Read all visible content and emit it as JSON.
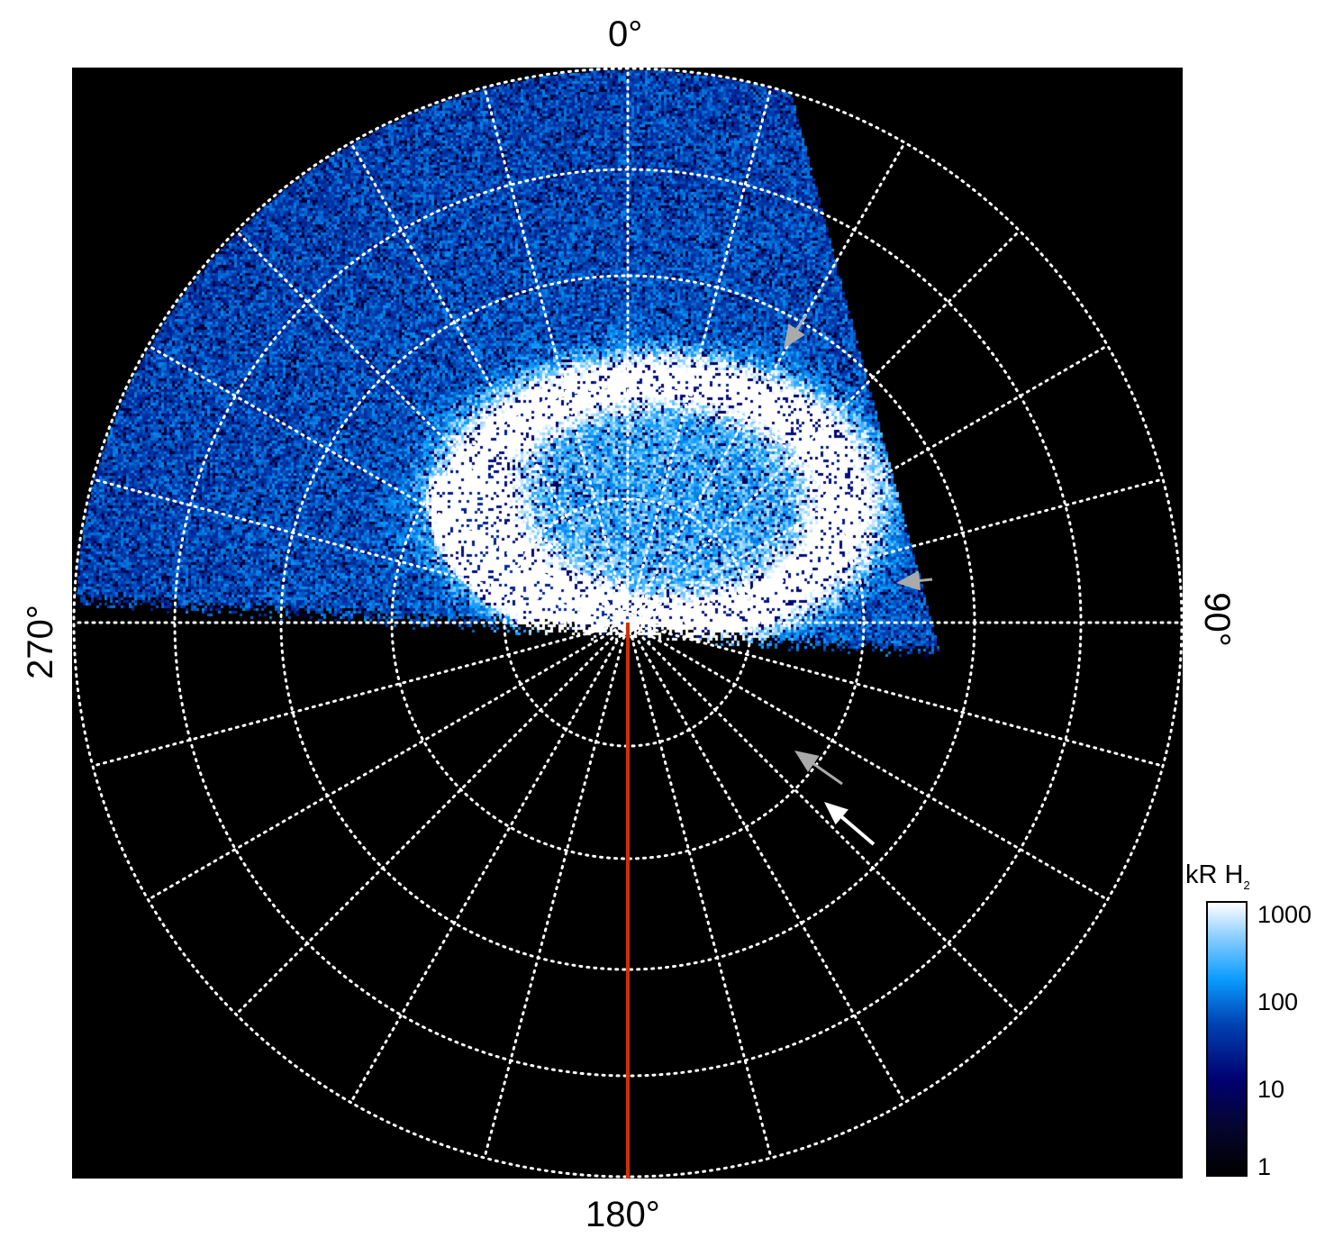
{
  "chart_data": {
    "type": "heatmap",
    "projection": "polar",
    "angle_labels": {
      "top": "0°",
      "right": "90°",
      "bottom": "180°",
      "left": "270°"
    },
    "meridian_spacing_deg": 15,
    "grid": true,
    "grid_style": "white dotted",
    "reference_line": {
      "angle_deg": 180,
      "color": "#d03000"
    },
    "colorbar": {
      "label": "kR H",
      "label_subscript": "2",
      "scale": "log",
      "range": [
        1,
        1000
      ],
      "ticks": [
        "1000",
        "100",
        "10",
        "1"
      ],
      "colormap": [
        "#000000",
        "#000070",
        "#0040b0",
        "#0a9cff",
        "#ffffff"
      ]
    },
    "annotations": [
      {
        "type": "arrow",
        "color": "#aaaaaa"
      },
      {
        "type": "arrow",
        "color": "#aaaaaa"
      },
      {
        "type": "arrow",
        "color": "#aaaaaa"
      },
      {
        "type": "arrow",
        "color": "#ffffff"
      }
    ]
  }
}
